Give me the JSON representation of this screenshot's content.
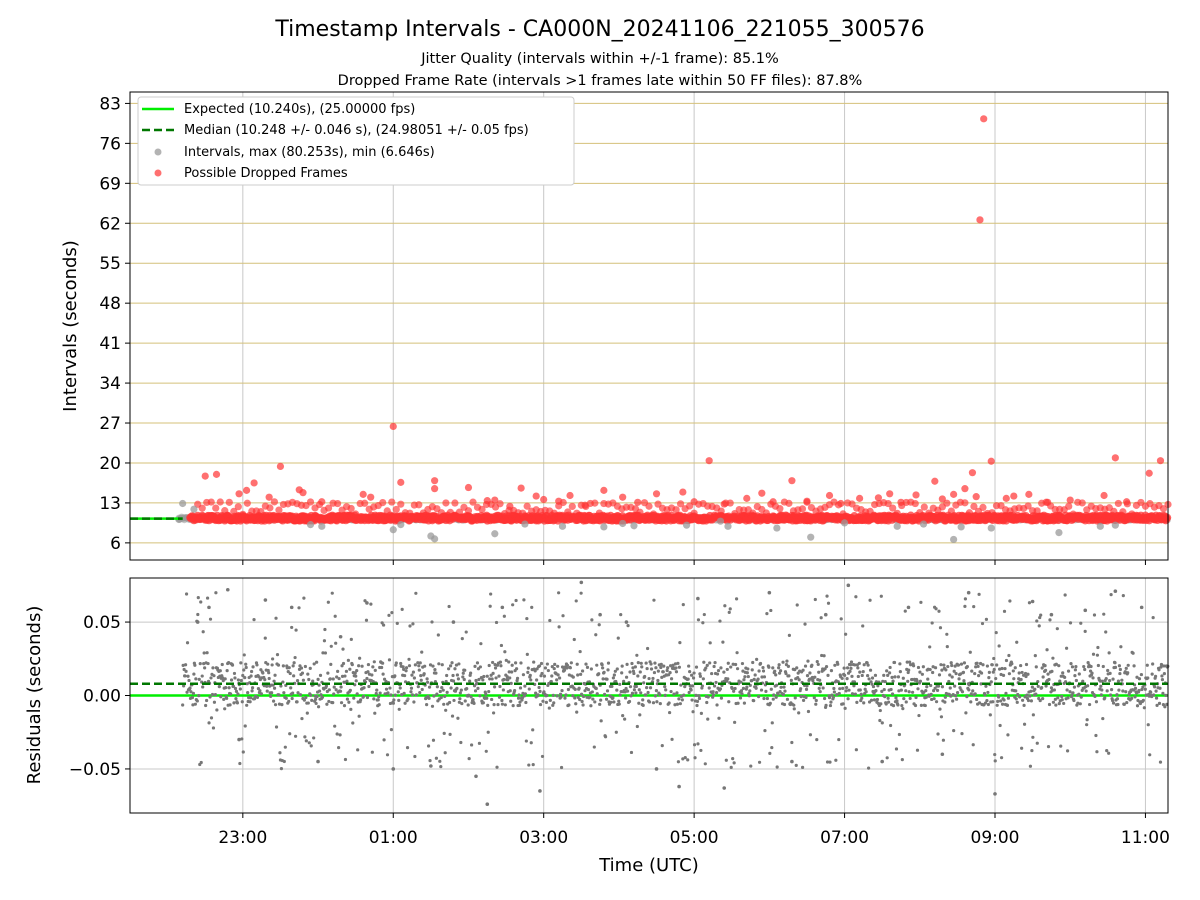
{
  "chart_data": [
    {
      "type": "scatter",
      "title": "Timestamp Intervals - CA000N_20241106_221055_300576",
      "subtitle_lines": [
        "Jitter Quality (intervals within +/-1 frame): 85.1%",
        "Dropped Frame Rate (intervals >1 frames late within 50 FF files): 87.8%"
      ],
      "xlabel": "",
      "ylabel": "Intervals (seconds)",
      "x_range_hours": [
        21.5,
        35.3
      ],
      "ylim": [
        3.0,
        85.0
      ],
      "y_ticks": [
        "6",
        "13",
        "20",
        "27",
        "34",
        "41",
        "48",
        "55",
        "62",
        "69",
        "76",
        "83"
      ],
      "grid": true,
      "legend_position": "top-left",
      "legend": [
        "Expected (10.240s), (25.00000 fps)",
        "Median (10.248 +/- 0.046 s), (24.98051 +/- 0.05 fps)",
        "Intervals, max (80.253s), min (6.646s)",
        "Possible Dropped Frames"
      ],
      "series": [
        {
          "name": "Expected (10.240s), (25.00000 fps)",
          "kind": "hline",
          "y": 10.24
        },
        {
          "name": "Median (10.248 +/- 0.046 s), (24.98051 +/- 0.05 fps)",
          "kind": "hline",
          "y": 10.248
        },
        {
          "name": "Intervals, max (80.253s), min (6.646s)",
          "kind": "scatter",
          "note_values": "band of intervals near 10.24 s from 22:10 to 11:15",
          "x": [
            22.15,
            22.2,
            22.35,
            23.9,
            24.05,
            25.0,
            25.1,
            25.5,
            25.55,
            26.35,
            26.75,
            27.25,
            27.8,
            28.05,
            28.2,
            28.9,
            29.35,
            29.45,
            30.1,
            30.55,
            31.0,
            31.7,
            32.05,
            32.45,
            32.55,
            32.95,
            33.85,
            34.4,
            34.6
          ],
          "y": [
            10.1,
            12.9,
            11.9,
            9.2,
            8.9,
            8.3,
            9.2,
            7.2,
            6.7,
            7.6,
            9.3,
            8.9,
            8.8,
            9.4,
            9.0,
            9.1,
            9.8,
            8.9,
            8.6,
            7.0,
            9.5,
            8.9,
            9.3,
            6.6,
            8.8,
            8.6,
            7.8,
            8.9,
            9.1
          ]
        },
        {
          "name": "Possible Dropped Frames",
          "kind": "scatter",
          "note_values": "outliers above the band; band continues densely at ~10.2 s",
          "x": [
            22.5,
            22.65,
            22.95,
            23.05,
            23.15,
            23.35,
            23.5,
            23.75,
            23.8,
            24.05,
            24.6,
            24.7,
            25.0,
            25.1,
            25.55,
            25.55,
            26.0,
            26.25,
            26.35,
            26.55,
            26.7,
            26.9,
            27.0,
            27.2,
            27.35,
            27.55,
            27.8,
            28.05,
            28.25,
            28.5,
            28.85,
            29.0,
            29.2,
            29.4,
            29.7,
            29.9,
            30.05,
            30.3,
            30.5,
            30.8,
            30.95,
            31.2,
            31.45,
            31.6,
            31.75,
            31.95,
            32.2,
            32.3,
            32.45,
            32.6,
            32.7,
            32.75,
            32.8,
            32.85,
            32.95,
            33.15,
            33.25,
            33.45,
            33.7,
            34.0,
            34.45,
            34.6,
            34.75,
            35.05,
            35.2
          ],
          "y": [
            17.7,
            18.0,
            14.6,
            15.2,
            16.5,
            14.0,
            19.4,
            15.3,
            14.8,
            13.2,
            14.5,
            14.0,
            26.4,
            16.6,
            15.5,
            16.9,
            15.7,
            13.4,
            13.5,
            12.4,
            15.6,
            14.2,
            13.6,
            13.3,
            14.3,
            12.6,
            15.2,
            14.0,
            13.1,
            14.6,
            14.9,
            13.2,
            20.4,
            12.8,
            13.8,
            14.7,
            13.2,
            16.9,
            13.3,
            14.3,
            12.9,
            13.8,
            13.9,
            14.6,
            13.1,
            14.4,
            16.8,
            13.7,
            14.5,
            15.5,
            18.3,
            14.1,
            62.6,
            80.3,
            20.3,
            13.8,
            14.2,
            14.5,
            13.1,
            13.5,
            14.3,
            20.9,
            13.2,
            18.2,
            20.4
          ]
        }
      ]
    },
    {
      "type": "scatter",
      "xlabel": "Time (UTC)",
      "ylabel": "Residuals (seconds)",
      "x_range_hours": [
        21.5,
        35.3
      ],
      "ylim": [
        -0.08,
        0.08
      ],
      "y_ticks": [
        "−0.05",
        "0.00",
        "0.05"
      ],
      "x_ticks": [
        "23:00",
        "01:00",
        "03:00",
        "05:00",
        "07:00",
        "09:00",
        "11:00"
      ],
      "grid": true,
      "series": [
        {
          "name": "",
          "kind": "hline",
          "y": 0.0
        },
        {
          "name": "",
          "kind": "hline",
          "y": 0.008
        },
        {
          "name": "",
          "kind": "scatter",
          "note_values": "residuals scattered between about -0.075 and 0.08 s, dense band near 0.00–0.02",
          "x": [
            22.4,
            22.55,
            22.8,
            22.95,
            23.3,
            23.65,
            24.0,
            24.3,
            24.65,
            25.0,
            25.5,
            25.8,
            26.1,
            26.25,
            26.45,
            26.95,
            27.5,
            27.75,
            28.1,
            28.5,
            28.8,
            29.05,
            29.4,
            30.0,
            30.3,
            30.75,
            31.05,
            31.5,
            31.85,
            32.3,
            32.65,
            33.0,
            33.5,
            33.75,
            34.2,
            34.6,
            34.95
          ],
          "y": [
            0.05,
            0.06,
            0.072,
            -0.03,
            0.065,
            0.06,
            -0.045,
            0.04,
            0.063,
            -0.05,
            -0.048,
            0.05,
            -0.055,
            -0.074,
            0.06,
            -0.065,
            0.077,
            0.055,
            0.05,
            -0.05,
            -0.062,
            0.066,
            -0.063,
            0.07,
            -0.045,
            0.055,
            0.075,
            -0.045,
            0.06,
            -0.04,
            0.07,
            -0.067,
            0.064,
            0.055,
            0.058,
            0.071,
            0.06
          ]
        }
      ]
    }
  ],
  "colors": {
    "expected": "#00ee00",
    "median": "#007700",
    "interval_points": "#999999",
    "dropped_points": "#ff3333",
    "residual_points": "#777777",
    "ygrid_top": "#d4c07a",
    "grid": "#c8c8c8"
  }
}
